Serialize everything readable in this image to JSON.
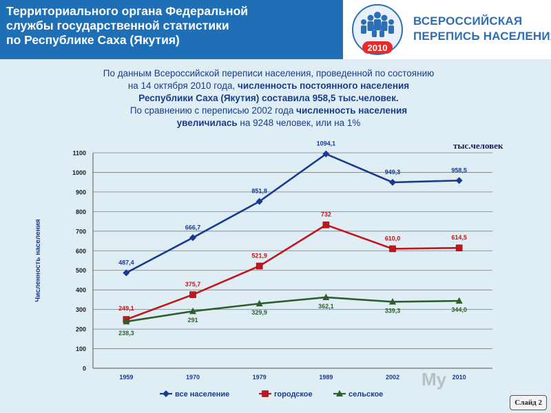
{
  "header": {
    "title_lines": [
      "Территориального органа Федеральной",
      "службы государственной статистики",
      "по Республике Саха (Якутия)"
    ],
    "census_title_lines": [
      "ВСЕРОССИЙСКАЯ",
      "ПЕРЕПИСЬ НАСЕЛЕНИЯ"
    ],
    "census_year": "2010"
  },
  "intro": {
    "line1": "По данным Всероссийской переписи населения, проведенной по состоянию",
    "line2_a": "на 14 октября 2010 года, ",
    "line2_b": "численность постоянного населения",
    "line3": "Республики Саха (Якутия) составила 958,5 тыс.человек.",
    "line4_a": "По сравнению с переписью 2002 года ",
    "line4_b": "численность населения",
    "line5_a": "увеличилась",
    "line5_b": " на 9248 человек, или на 1%"
  },
  "unit_label": "тыс.человек",
  "slide_label": "Слайд 2",
  "watermark": "My",
  "colors": {
    "total": "#1a3a8f",
    "urban": "#c0161c",
    "rural": "#2e5e2e",
    "header_bg": "#1f6fb6",
    "page_bg": "#dfeef4"
  },
  "chart_data": {
    "type": "line",
    "categories": [
      "1959",
      "1970",
      "1979",
      "1989",
      "2002",
      "2010"
    ],
    "ylabel": "Численность населения",
    "ylim": [
      0,
      1100
    ],
    "yticks": [
      0,
      100,
      200,
      300,
      400,
      500,
      600,
      700,
      800,
      900,
      1000,
      1100
    ],
    "grid": true,
    "legend": "bottom",
    "series": [
      {
        "name": "все население",
        "marker": "diamond",
        "values": [
          487.4,
          666.7,
          851.8,
          1094.1,
          949.3,
          958.5
        ],
        "labels": [
          "487,4",
          "666,7",
          "851,8",
          "1094,1",
          "949,3",
          "958,5"
        ]
      },
      {
        "name": "городское",
        "marker": "square",
        "values": [
          249.1,
          375.7,
          521.9,
          732,
          610.0,
          614.5
        ],
        "labels": [
          "249,1",
          "375,7",
          "521,9",
          "732",
          "610,0",
          "614,5"
        ]
      },
      {
        "name": "сельское",
        "marker": "triangle",
        "values": [
          238.3,
          291,
          329.9,
          362.1,
          339.3,
          344.0
        ],
        "labels": [
          "238,3",
          "291",
          "329,9",
          "362,1",
          "339,3",
          "344,0"
        ]
      }
    ]
  }
}
